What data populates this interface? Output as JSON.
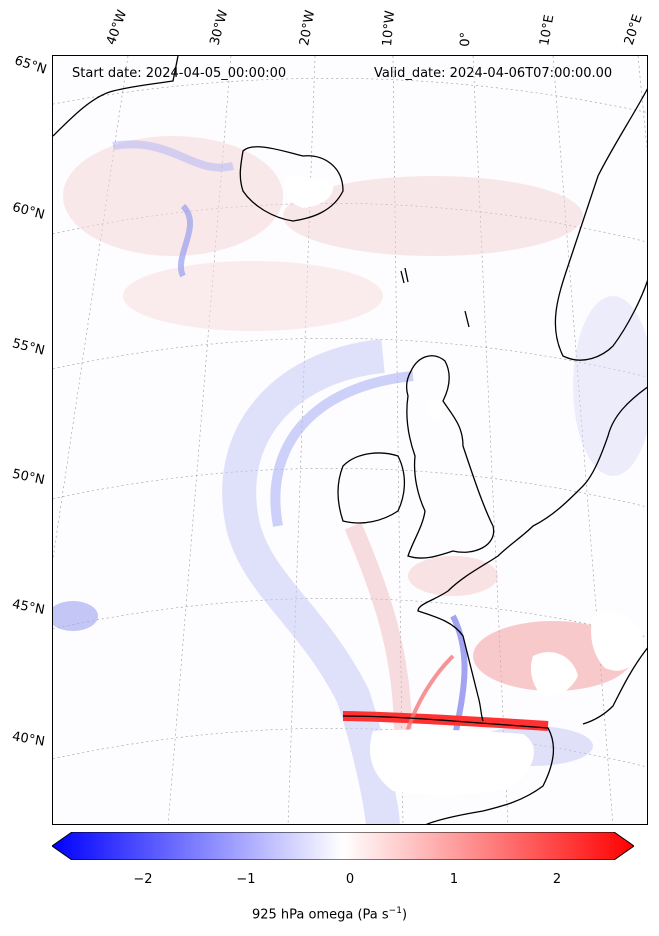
{
  "map": {
    "start_date_label": "Start date: 2024-04-05_00:00:00",
    "valid_date_label": "Valid_date: 2024-04-06T07:00:00.00",
    "longitude_labels": [
      "40°W",
      "30°W",
      "20°W",
      "10°W",
      "0°",
      "10°E",
      "20°E"
    ],
    "latitude_labels": [
      "65°N",
      "60°N",
      "55°N",
      "50°N",
      "45°N",
      "40°N"
    ],
    "field": "925 hPa omega",
    "projection": "conic",
    "colormap": "bwr",
    "colors": {
      "negative": "#0000ff",
      "neutral": "#ffffff",
      "positive": "#ff0000",
      "coastline": "#000000"
    }
  },
  "colorbar": {
    "ticks": [
      "−2",
      "−1",
      "0",
      "1",
      "2"
    ],
    "range": [
      -2.7,
      2.7
    ],
    "label": "925 hPa omega (Pa s",
    "label_exponent": "−1",
    "label_suffix": ")"
  }
}
